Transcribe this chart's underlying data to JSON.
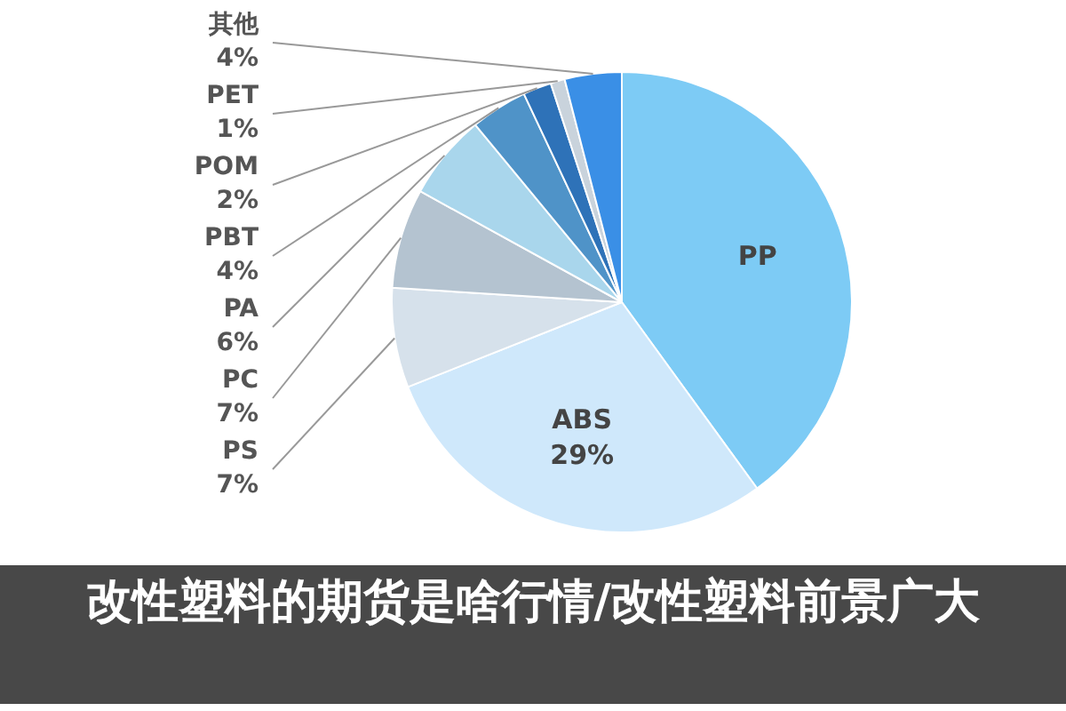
{
  "chart_data": {
    "type": "pie",
    "title": "改性塑料的期货是啥行情/改性塑料前景广大",
    "categories": [
      "PP",
      "ABS",
      "PS",
      "PC",
      "PA",
      "PBT",
      "POM",
      "PET",
      "其他"
    ],
    "values": [
      40,
      29,
      7,
      7,
      6,
      4,
      2,
      1,
      4
    ],
    "value_labels": [
      null,
      "29%",
      "7%",
      "7%",
      "6%",
      "4%",
      "2%",
      "1%",
      "4%"
    ],
    "colors": [
      "#7dcbf5",
      "#cfe8fb",
      "#d6e1eb",
      "#b4c3d0",
      "#a9d6ec",
      "#4f93c8",
      "#2e72b8",
      "#c9d3dc",
      "#3a8fe6"
    ],
    "legend": false
  }
}
